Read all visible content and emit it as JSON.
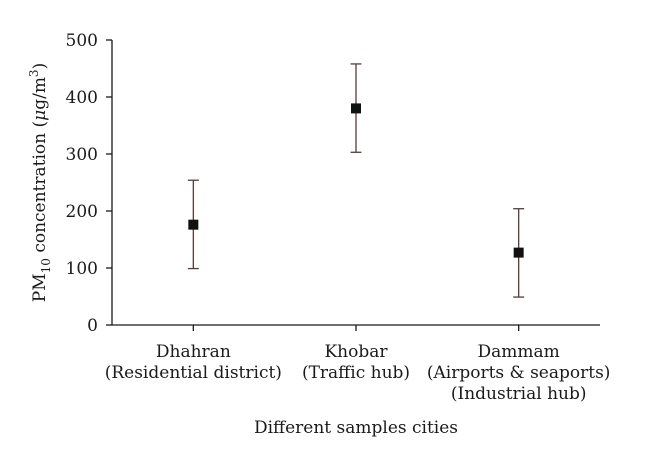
{
  "chart_data": {
    "type": "scatter",
    "categories": [
      [
        "Dhahran",
        "(Residential district)"
      ],
      [
        "Khobar",
        "(Traffic hub)"
      ],
      [
        "Dammam",
        "(Airports & seaports)",
        "(Industrial hub)"
      ]
    ],
    "values": [
      176,
      380,
      127
    ],
    "error_low": [
      99,
      303,
      49
    ],
    "error_high": [
      254,
      458,
      204
    ],
    "title": "",
    "xlabel": "Different samples cities",
    "ylabel": {
      "prefix": "PM",
      "subscript": "10",
      "middle": " concentration (",
      "mu": "μ",
      "unit": "g/m",
      "superscript": "3",
      "suffix": ")"
    },
    "ylim": [
      0,
      500
    ],
    "yticks": [
      "0",
      "100",
      "200",
      "300",
      "400",
      "500"
    ],
    "grid": false,
    "legend": "none"
  }
}
